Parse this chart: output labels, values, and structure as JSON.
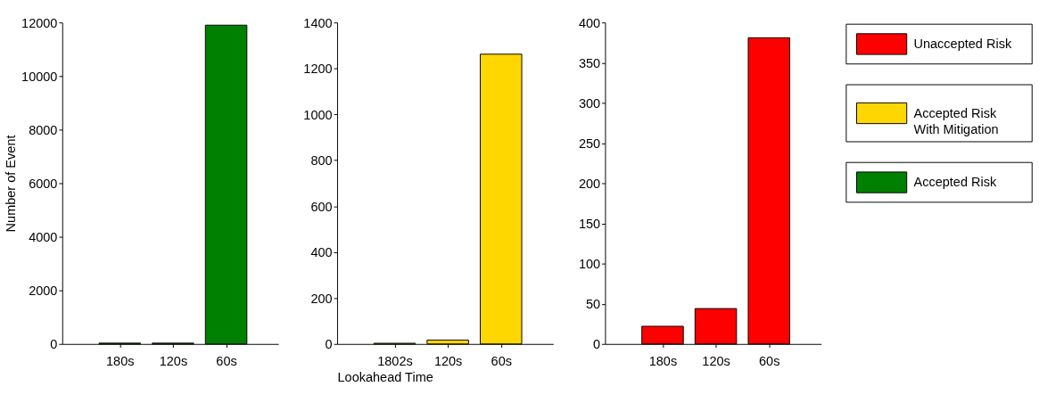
{
  "chart_data": [
    {
      "type": "bar",
      "ylabel": "Number of Event",
      "categories": [
        "180s",
        "120s",
        "60s"
      ],
      "ylim": [
        0,
        12000
      ],
      "yticks": [
        0,
        2000,
        4000,
        6000,
        8000,
        10000,
        12000
      ],
      "legend": "right",
      "series": [
        {
          "name": "Accepted Risk",
          "color": "#008000",
          "values": [
            30,
            30,
            11900
          ]
        }
      ]
    },
    {
      "type": "bar",
      "xlabel": "Lookahead Time",
      "categories": [
        "1802s",
        "120s",
        "60s"
      ],
      "ylim": [
        0,
        1400
      ],
      "yticks": [
        0,
        200,
        400,
        600,
        800,
        1000,
        1200,
        1400
      ],
      "legend": "right",
      "series": [
        {
          "name": "Accepted Risk With Mitigation",
          "color": "#ffd700",
          "values": [
            3,
            17,
            1262
          ]
        }
      ]
    },
    {
      "type": "bar",
      "categories": [
        "180s",
        "120s",
        "60s"
      ],
      "ylim": [
        0,
        400
      ],
      "yticks": [
        0,
        50,
        100,
        150,
        200,
        250,
        300,
        350,
        400
      ],
      "legend": "right",
      "series": [
        {
          "name": "Unaccepted Risk",
          "color": "#ff0000",
          "values": [
            22,
            44,
            381
          ]
        }
      ]
    }
  ]
}
